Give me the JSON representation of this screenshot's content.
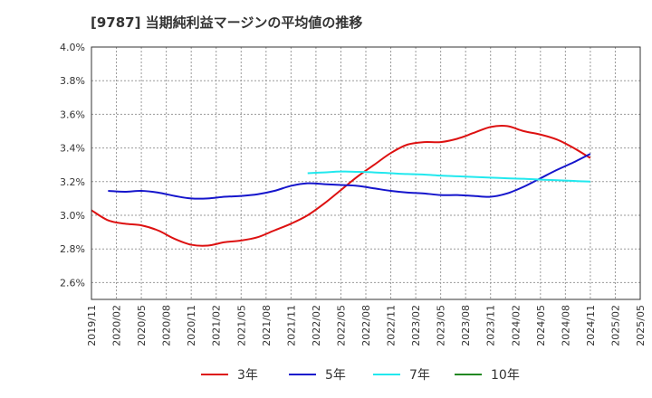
{
  "title": "[9787]  当期純利益マージンの平均値の推移",
  "chart_data": {
    "type": "line",
    "y_ticks": [
      "4.0%",
      "3.8%",
      "3.6%",
      "3.4%",
      "3.2%",
      "3.0%",
      "2.8%",
      "2.6%"
    ],
    "y_tick_values": [
      4.0,
      3.8,
      3.6,
      3.4,
      3.2,
      3.0,
      2.8,
      2.6
    ],
    "ylim": [
      2.5,
      4.0
    ],
    "x_ticks": [
      "2019/11",
      "2020/02",
      "2020/05",
      "2020/08",
      "2020/11",
      "2021/02",
      "2021/05",
      "2021/08",
      "2021/11",
      "2022/02",
      "2022/05",
      "2022/08",
      "2022/11",
      "2023/02",
      "2023/05",
      "2023/08",
      "2023/11",
      "2024/02",
      "2024/05",
      "2024/08",
      "2024/11",
      "2025/02",
      "2025/05"
    ],
    "xlim": [
      "2019/11",
      "2025/05"
    ],
    "grid": true,
    "legend_position": "bottom",
    "series": [
      {
        "name": "3年",
        "color": "#dd1111",
        "points": [
          [
            "2019/11",
            3.03
          ],
          [
            "2020/01",
            2.97
          ],
          [
            "2020/03",
            2.95
          ],
          [
            "2020/05",
            2.94
          ],
          [
            "2020/07",
            2.91
          ],
          [
            "2020/09",
            2.86
          ],
          [
            "2020/11",
            2.825
          ],
          [
            "2021/01",
            2.82
          ],
          [
            "2021/03",
            2.84
          ],
          [
            "2021/05",
            2.85
          ],
          [
            "2021/07",
            2.87
          ],
          [
            "2021/09",
            2.91
          ],
          [
            "2021/11",
            2.95
          ],
          [
            "2022/01",
            3.0
          ],
          [
            "2022/03",
            3.07
          ],
          [
            "2022/05",
            3.15
          ],
          [
            "2022/07",
            3.23
          ],
          [
            "2022/09",
            3.3
          ],
          [
            "2022/11",
            3.37
          ],
          [
            "2023/01",
            3.42
          ],
          [
            "2023/03",
            3.435
          ],
          [
            "2023/05",
            3.435
          ],
          [
            "2023/07",
            3.455
          ],
          [
            "2023/09",
            3.49
          ],
          [
            "2023/11",
            3.525
          ],
          [
            "2024/01",
            3.53
          ],
          [
            "2024/03",
            3.5
          ],
          [
            "2024/05",
            3.48
          ],
          [
            "2024/07",
            3.45
          ],
          [
            "2024/09",
            3.4
          ],
          [
            "2024/11",
            3.34
          ]
        ]
      },
      {
        "name": "5年",
        "color": "#1515cc",
        "points": [
          [
            "2020/01",
            3.145
          ],
          [
            "2020/03",
            3.14
          ],
          [
            "2020/05",
            3.145
          ],
          [
            "2020/07",
            3.135
          ],
          [
            "2020/09",
            3.115
          ],
          [
            "2020/11",
            3.1
          ],
          [
            "2021/01",
            3.1
          ],
          [
            "2021/03",
            3.11
          ],
          [
            "2021/05",
            3.115
          ],
          [
            "2021/07",
            3.125
          ],
          [
            "2021/09",
            3.145
          ],
          [
            "2021/11",
            3.175
          ],
          [
            "2022/01",
            3.19
          ],
          [
            "2022/03",
            3.185
          ],
          [
            "2022/05",
            3.18
          ],
          [
            "2022/07",
            3.175
          ],
          [
            "2022/09",
            3.16
          ],
          [
            "2022/11",
            3.145
          ],
          [
            "2023/01",
            3.135
          ],
          [
            "2023/03",
            3.13
          ],
          [
            "2023/05",
            3.12
          ],
          [
            "2023/07",
            3.12
          ],
          [
            "2023/09",
            3.115
          ],
          [
            "2023/11",
            3.11
          ],
          [
            "2024/01",
            3.13
          ],
          [
            "2024/03",
            3.17
          ],
          [
            "2024/05",
            3.22
          ],
          [
            "2024/07",
            3.27
          ],
          [
            "2024/09",
            3.315
          ],
          [
            "2024/11",
            3.365
          ]
        ]
      },
      {
        "name": "7年",
        "color": "#22e8ee",
        "points": [
          [
            "2022/01",
            3.25
          ],
          [
            "2022/03",
            3.255
          ],
          [
            "2022/05",
            3.26
          ],
          [
            "2022/07",
            3.258
          ],
          [
            "2022/09",
            3.255
          ],
          [
            "2022/11",
            3.25
          ],
          [
            "2023/01",
            3.245
          ],
          [
            "2023/03",
            3.242
          ],
          [
            "2023/05",
            3.236
          ],
          [
            "2023/07",
            3.232
          ],
          [
            "2023/09",
            3.228
          ],
          [
            "2023/11",
            3.224
          ],
          [
            "2024/01",
            3.22
          ],
          [
            "2024/03",
            3.217
          ],
          [
            "2024/05",
            3.212
          ],
          [
            "2024/07",
            3.208
          ],
          [
            "2024/09",
            3.204
          ],
          [
            "2024/11",
            3.2
          ]
        ]
      },
      {
        "name": "10年",
        "color": "#228822",
        "points": []
      }
    ]
  }
}
